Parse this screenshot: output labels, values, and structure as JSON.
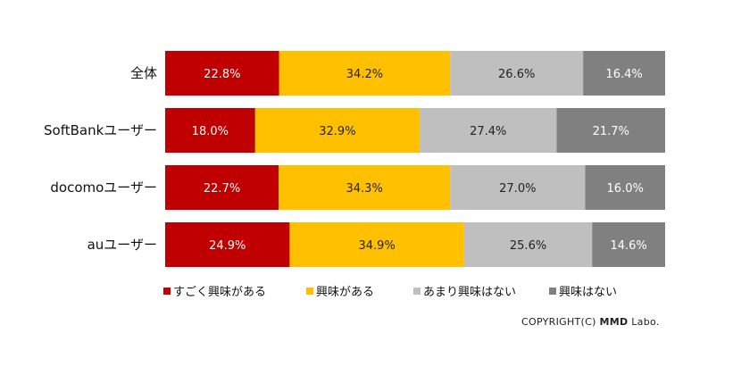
{
  "chart_data": {
    "type": "bar",
    "orientation": "horizontal",
    "stacked": "100%",
    "categories": [
      "全体",
      "SoftBankユーザー",
      "docomoユーザー",
      "auユーザー"
    ],
    "series": [
      {
        "name": "すごく興味がある",
        "color": "#c00000",
        "label_color": "#ffffff",
        "values": [
          22.8,
          18.0,
          22.7,
          24.9
        ]
      },
      {
        "name": "興味がある",
        "color": "#ffc000",
        "label_color": "#222222",
        "values": [
          34.2,
          32.9,
          34.3,
          34.9
        ]
      },
      {
        "name": "あまり興味はない",
        "color": "#bfbfbf",
        "label_color": "#222222",
        "values": [
          26.6,
          27.4,
          27.0,
          25.6
        ]
      },
      {
        "name": "興味はない",
        "color": "#808080",
        "label_color": "#ffffff",
        "values": [
          16.4,
          21.7,
          16.0,
          14.6
        ]
      }
    ],
    "data_labels": [
      [
        "22.8%",
        "34.2%",
        "26.6%",
        "16.4%"
      ],
      [
        "18.0%",
        "32.9%",
        "27.4%",
        "21.7%"
      ],
      [
        "22.7%",
        "34.3%",
        "27.0%",
        "16.0%"
      ],
      [
        "24.9%",
        "34.9%",
        "25.6%",
        "14.6%"
      ]
    ],
    "legend_position": "bottom",
    "grid": false
  },
  "copyright": {
    "prefix": "COPYRIGHT(C) ",
    "brand": "MMD",
    "suffix": " Labo."
  }
}
